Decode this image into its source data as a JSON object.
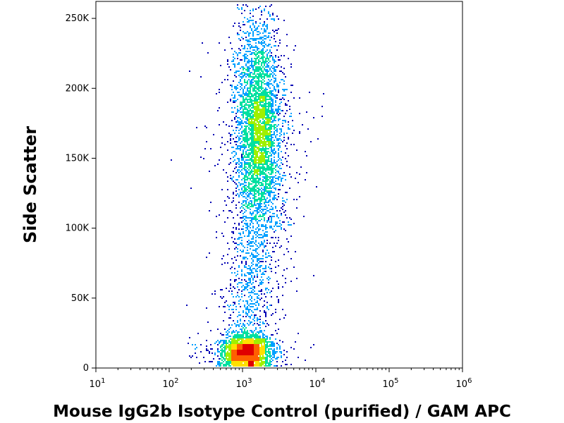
{
  "chart_data": {
    "type": "scatter",
    "title": "",
    "xlabel": "Mouse IgG2b Isotype Control (purified) / GAM APC",
    "ylabel": "Side Scatter",
    "x_scale": "log",
    "xlim": [
      10,
      1000000
    ],
    "ylim": [
      0,
      262144
    ],
    "x_ticks": [
      {
        "value": 10,
        "base": "10",
        "exp": "1"
      },
      {
        "value": 100,
        "base": "10",
        "exp": "2"
      },
      {
        "value": 1000,
        "base": "10",
        "exp": "3"
      },
      {
        "value": 10000,
        "base": "10",
        "exp": "4"
      },
      {
        "value": 100000,
        "base": "10",
        "exp": "5"
      },
      {
        "value": 1000000,
        "base": "10",
        "exp": "6"
      }
    ],
    "y_ticks": [
      {
        "value": 0,
        "label": "0"
      },
      {
        "value": 50000,
        "label": "50K"
      },
      {
        "value": 100000,
        "label": "100K"
      },
      {
        "value": 150000,
        "label": "150K"
      },
      {
        "value": 200000,
        "label": "200K"
      },
      {
        "value": 250000,
        "label": "250K"
      }
    ],
    "grid": false,
    "color_map": [
      "#0000b4",
      "#00a0ff",
      "#00e0a0",
      "#a0f000",
      "#ffe000",
      "#ff6000",
      "#e00000"
    ],
    "populations": [
      {
        "x_center": 1100,
        "y_center": 12000,
        "x_spread_log": 0.16,
        "y_spread": 6000,
        "events": 2600
      },
      {
        "x_center": 1600,
        "y_center": 170000,
        "x_spread_log": 0.16,
        "y_spread": 38000,
        "events": 4200
      },
      {
        "x_center": 1300,
        "y_center": 60000,
        "x_spread_log": 0.18,
        "y_spread": 28000,
        "events": 700
      }
    ]
  }
}
